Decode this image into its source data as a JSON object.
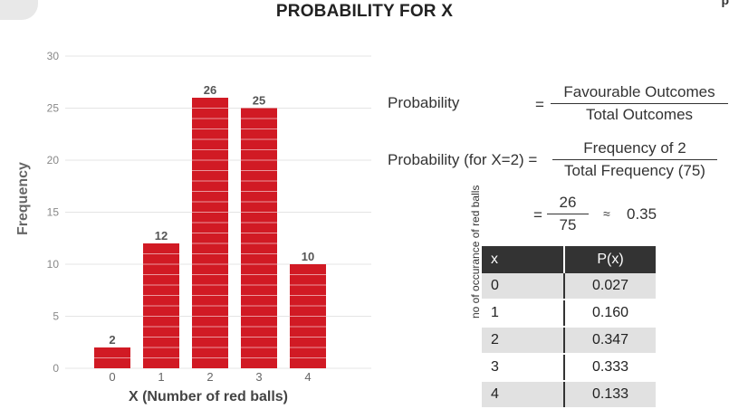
{
  "header": {
    "title": "PROBABILITY FOR X",
    "corner_text": "p"
  },
  "chart_data": {
    "type": "bar",
    "categories": [
      "0",
      "1",
      "2",
      "3",
      "4"
    ],
    "values": [
      2,
      12,
      26,
      25,
      10
    ],
    "data_labels": [
      "2",
      "12",
      "26",
      "25",
      "10"
    ],
    "xlabel": "X (Number of red balls)",
    "ylabel": "Frequency",
    "ylim": [
      0,
      30
    ],
    "yticks": [
      0,
      5,
      10,
      15,
      20,
      25,
      30
    ],
    "grid": true,
    "bar_color": "#d11a24"
  },
  "formulas": {
    "row1": {
      "label": "Probability",
      "eq": "=",
      "numerator": "Favourable Outcomes",
      "denominator": "Total Outcomes"
    },
    "row2": {
      "label": "Probability (for X=2) =",
      "numerator": "Frequency of 2",
      "denominator": "Total Frequency (75)"
    },
    "row3": {
      "eq": "=",
      "numerator": "26",
      "denominator": "75",
      "approx": "≈",
      "result": "0.35"
    }
  },
  "table": {
    "side_label": "no of occurance of red balls",
    "headers": [
      "x",
      "P(x)"
    ],
    "rows": [
      [
        "0",
        "0.027"
      ],
      [
        "1",
        "0.160"
      ],
      [
        "2",
        "0.347"
      ],
      [
        "3",
        "0.333"
      ],
      [
        "4",
        "0.133"
      ]
    ]
  }
}
